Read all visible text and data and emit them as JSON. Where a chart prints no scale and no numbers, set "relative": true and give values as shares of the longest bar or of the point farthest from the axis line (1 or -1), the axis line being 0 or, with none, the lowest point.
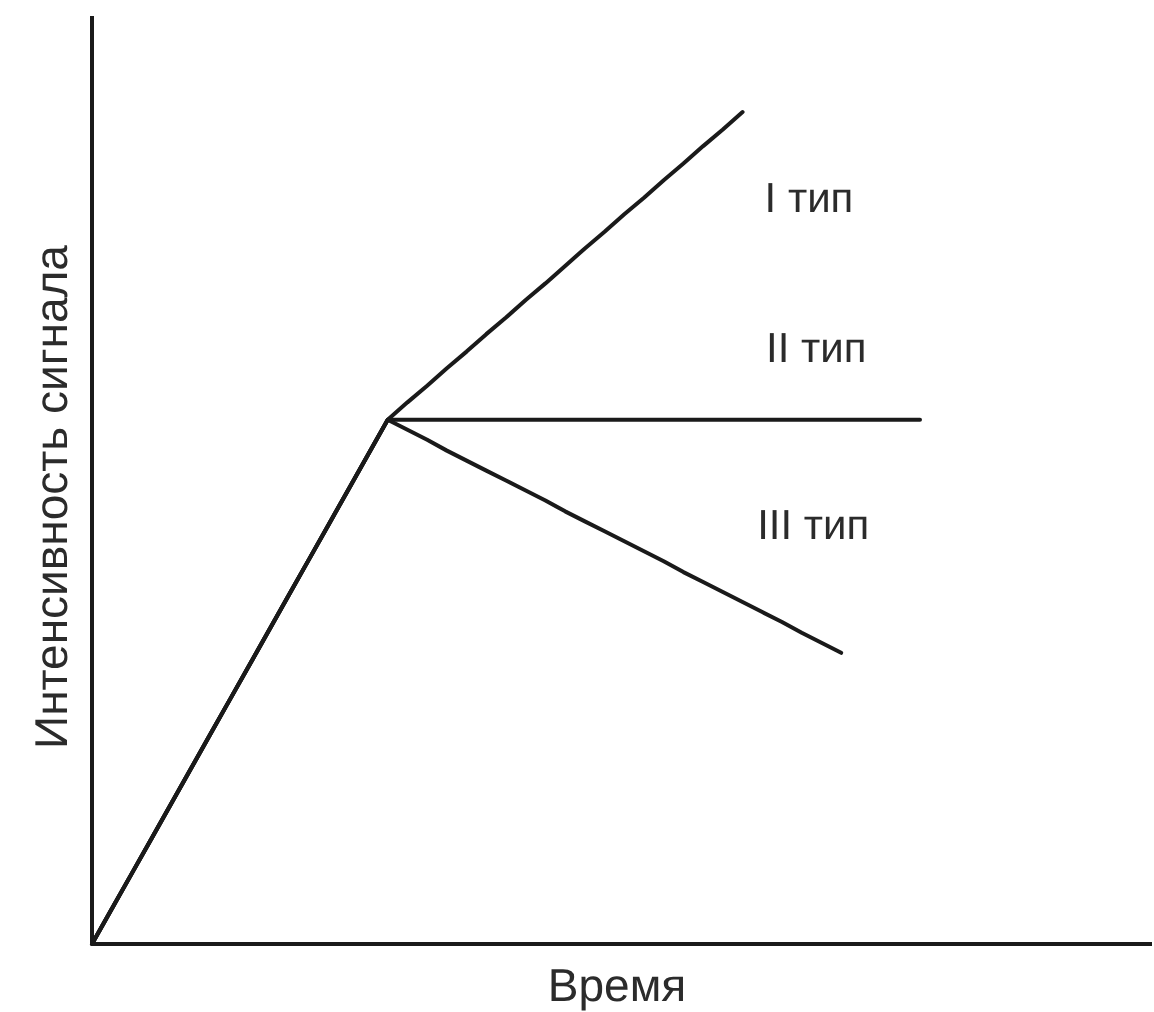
{
  "chart_data": {
    "type": "line",
    "xlabel": "Время",
    "ylabel": "Интенсивность сигнала",
    "relative": true,
    "categories": [
      null,
      null,
      null,
      null,
      null,
      null,
      null,
      null,
      null,
      null,
      null,
      null,
      null,
      null,
      null,
      null,
      null,
      null,
      null,
      null,
      null,
      null,
      null,
      null,
      null,
      null,
      null,
      null,
      null,
      null,
      null,
      null,
      null,
      null,
      null,
      null,
      null,
      null,
      null,
      null,
      null,
      null,
      null
    ],
    "series": [
      {
        "name": "I тип",
        "color": "#1a1a1a",
        "values": [
          0,
          0.042,
          0.084,
          0.126,
          0.168,
          0.21,
          0.252,
          0.294,
          0.336,
          0.378,
          0.42,
          0.462,
          0.504,
          0.546,
          0.588,
          0.63,
          0.651,
          0.671,
          0.692,
          0.712,
          0.733,
          0.753,
          0.774,
          0.794,
          0.815,
          0.836,
          0.856,
          0.877,
          0.897,
          0.918,
          0.938,
          0.959,
          0.979,
          1.0,
          null,
          null,
          null,
          null,
          null,
          null,
          null,
          null,
          null
        ]
      },
      {
        "name": "II тип",
        "color": "#1a1a1a",
        "values": [
          0,
          0.042,
          0.084,
          0.126,
          0.168,
          0.21,
          0.252,
          0.294,
          0.336,
          0.378,
          0.42,
          0.462,
          0.504,
          0.546,
          0.588,
          0.63,
          0.63,
          0.63,
          0.63,
          0.63,
          0.63,
          0.63,
          0.63,
          0.63,
          0.63,
          0.63,
          0.63,
          0.63,
          0.63,
          0.63,
          0.63,
          0.63,
          0.63,
          0.63,
          0.63,
          0.63,
          0.63,
          0.63,
          0.63,
          0.63,
          0.63,
          0.63,
          0.63
        ]
      },
      {
        "name": "III тип",
        "color": "#1a1a1a",
        "values": [
          0,
          0.042,
          0.084,
          0.126,
          0.168,
          0.21,
          0.252,
          0.294,
          0.336,
          0.378,
          0.42,
          0.462,
          0.504,
          0.546,
          0.588,
          0.63,
          0.618,
          0.606,
          0.593,
          0.581,
          0.569,
          0.557,
          0.545,
          0.533,
          0.52,
          0.508,
          0.496,
          0.484,
          0.472,
          0.46,
          0.447,
          0.435,
          0.423,
          0.411,
          0.399,
          0.387,
          0.374,
          0.362,
          0.35,
          null,
          null,
          null,
          null
        ]
      }
    ]
  }
}
